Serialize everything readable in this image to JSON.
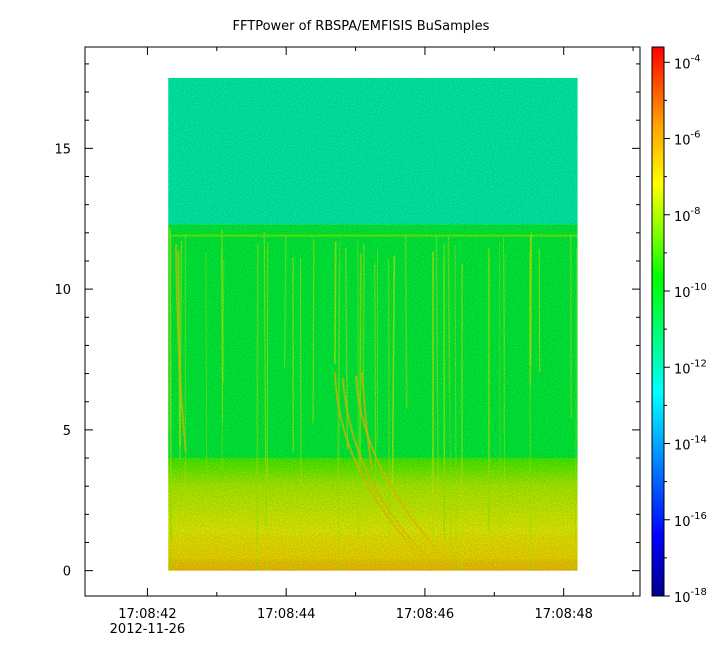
{
  "chart_data": {
    "type": "heatmap",
    "title": "FFTPower of RBSPA/EMFISIS  BuSamples",
    "xlabel": "",
    "ylabel": "",
    "x_ticks": [
      "17:08:42",
      "17:08:44",
      "17:08:46",
      "17:08:48"
    ],
    "x_date_label": "2012-11-26",
    "x_range_seconds": [
      41.1,
      49.1
    ],
    "x_tick_seconds": [
      42,
      44,
      46,
      48
    ],
    "data_x_extent_seconds": [
      42.3,
      48.2
    ],
    "y_range": [
      -0.9,
      18.6
    ],
    "y_ticks": [
      0,
      5,
      10,
      15
    ],
    "data_y_extent": [
      0,
      17.5
    ],
    "colorbar": {
      "scale": "log",
      "range_exponent": [
        -18,
        -3.6
      ],
      "tick_exponents": [
        -4,
        -6,
        -8,
        -10,
        -12,
        -14,
        -16,
        -18
      ],
      "colors": [
        "#00008f",
        "#0000ff",
        "#00a0ff",
        "#00ffff",
        "#00ff80",
        "#00ff00",
        "#80ff00",
        "#ffff00",
        "#ffa000",
        "#ff0000"
      ]
    },
    "regions": [
      {
        "name": "upper band",
        "y_range": [
          12.3,
          17.5
        ],
        "approx_exponent": -11.8
      },
      {
        "name": "middle band",
        "y_range": [
          4,
          12.3
        ],
        "approx_exponent": -10.4
      },
      {
        "name": "lower band",
        "y_range": [
          0,
          4
        ],
        "approx_exponent": -8.8
      }
    ],
    "features": [
      {
        "type": "horizontal line",
        "y": 11.9,
        "approx_exponent": -8.3
      },
      {
        "type": "intense near-zero band",
        "y_range": [
          0.4,
          1.1
        ],
        "approx_exponent": -7
      }
    ]
  }
}
